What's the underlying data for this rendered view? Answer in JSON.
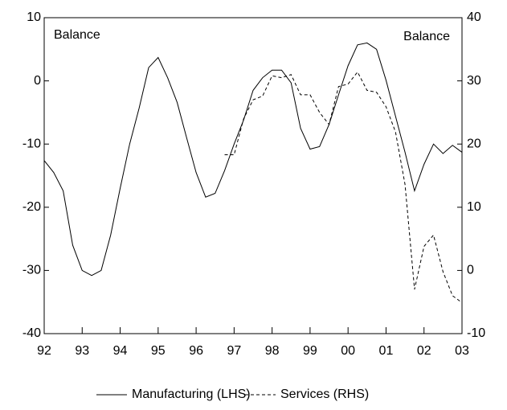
{
  "chart_data": {
    "type": "line",
    "annotations": [
      "Balance",
      "Balance"
    ],
    "x": [
      1992,
      1992.25,
      1992.5,
      1992.75,
      1993,
      1993.25,
      1993.5,
      1993.75,
      1994,
      1994.25,
      1994.5,
      1994.75,
      1995,
      1995.25,
      1995.5,
      1995.75,
      1996,
      1996.25,
      1996.5,
      1996.75,
      1997,
      1997.25,
      1997.5,
      1997.75,
      1998,
      1998.25,
      1998.5,
      1998.75,
      1999,
      1999.25,
      1999.5,
      1999.75,
      2000,
      2000.25,
      2000.5,
      2000.75,
      2001,
      2001.25,
      2001.5,
      2001.75,
      2002,
      2002.25,
      2002.5,
      2002.75,
      2003
    ],
    "series": [
      {
        "name": "Manufacturing (LHS)",
        "color": "#000000",
        "dash": false,
        "values": [
          -12.6,
          -14.5,
          -17.4,
          -26,
          -30,
          -30.8,
          -30,
          -24.4,
          -17,
          -10,
          -4.3,
          2.1,
          3.7,
          0.5,
          -3.4,
          -9,
          -14.5,
          -18.4,
          -17.8,
          -14.2,
          -10,
          -6.2,
          -1.5,
          0.5,
          1.7,
          1.7,
          -0.3,
          -7.5,
          -10.8,
          -10.4,
          -6.9,
          -2.2,
          2.4,
          5.7,
          6.0,
          5.0,
          0.1,
          -5.6,
          -11.3,
          -17.4,
          -13.2,
          -10,
          -11.5,
          -10.2,
          -11.3
        ]
      },
      {
        "name": "Services (RHS)",
        "color": "#000000",
        "dash": true,
        "axis": "y2",
        "values": [
          null,
          null,
          null,
          null,
          null,
          null,
          null,
          null,
          null,
          null,
          null,
          null,
          null,
          null,
          null,
          null,
          null,
          null,
          null,
          18.3,
          18.3,
          24,
          27,
          27.6,
          30.8,
          30.5,
          31,
          27.8,
          27.8,
          25,
          23.1,
          29.1,
          29.5,
          31.4,
          28.5,
          28.2,
          25.9,
          21.9,
          13.6,
          -3,
          3.8,
          5.6,
          -0.2,
          -4,
          -5.1
        ]
      }
    ],
    "xlim": [
      1992,
      2003
    ],
    "xticks": [
      {
        "value": 1992,
        "label": "92"
      },
      {
        "value": 1993,
        "label": "93"
      },
      {
        "value": 1994,
        "label": "94"
      },
      {
        "value": 1995,
        "label": "95"
      },
      {
        "value": 1996,
        "label": "96"
      },
      {
        "value": 1997,
        "label": "97"
      },
      {
        "value": 1998,
        "label": "98"
      },
      {
        "value": 1999,
        "label": "99"
      },
      {
        "value": 2000,
        "label": "00"
      },
      {
        "value": 2001,
        "label": "01"
      },
      {
        "value": 2002,
        "label": "02"
      },
      {
        "value": 2003,
        "label": "03"
      }
    ],
    "ylim": [
      -40,
      10
    ],
    "yticks": [
      -40,
      -30,
      -20,
      -10,
      0,
      10
    ],
    "y2lim": [
      -10,
      40
    ],
    "y2ticks": [
      -10,
      0,
      10,
      20,
      30,
      40
    ]
  }
}
